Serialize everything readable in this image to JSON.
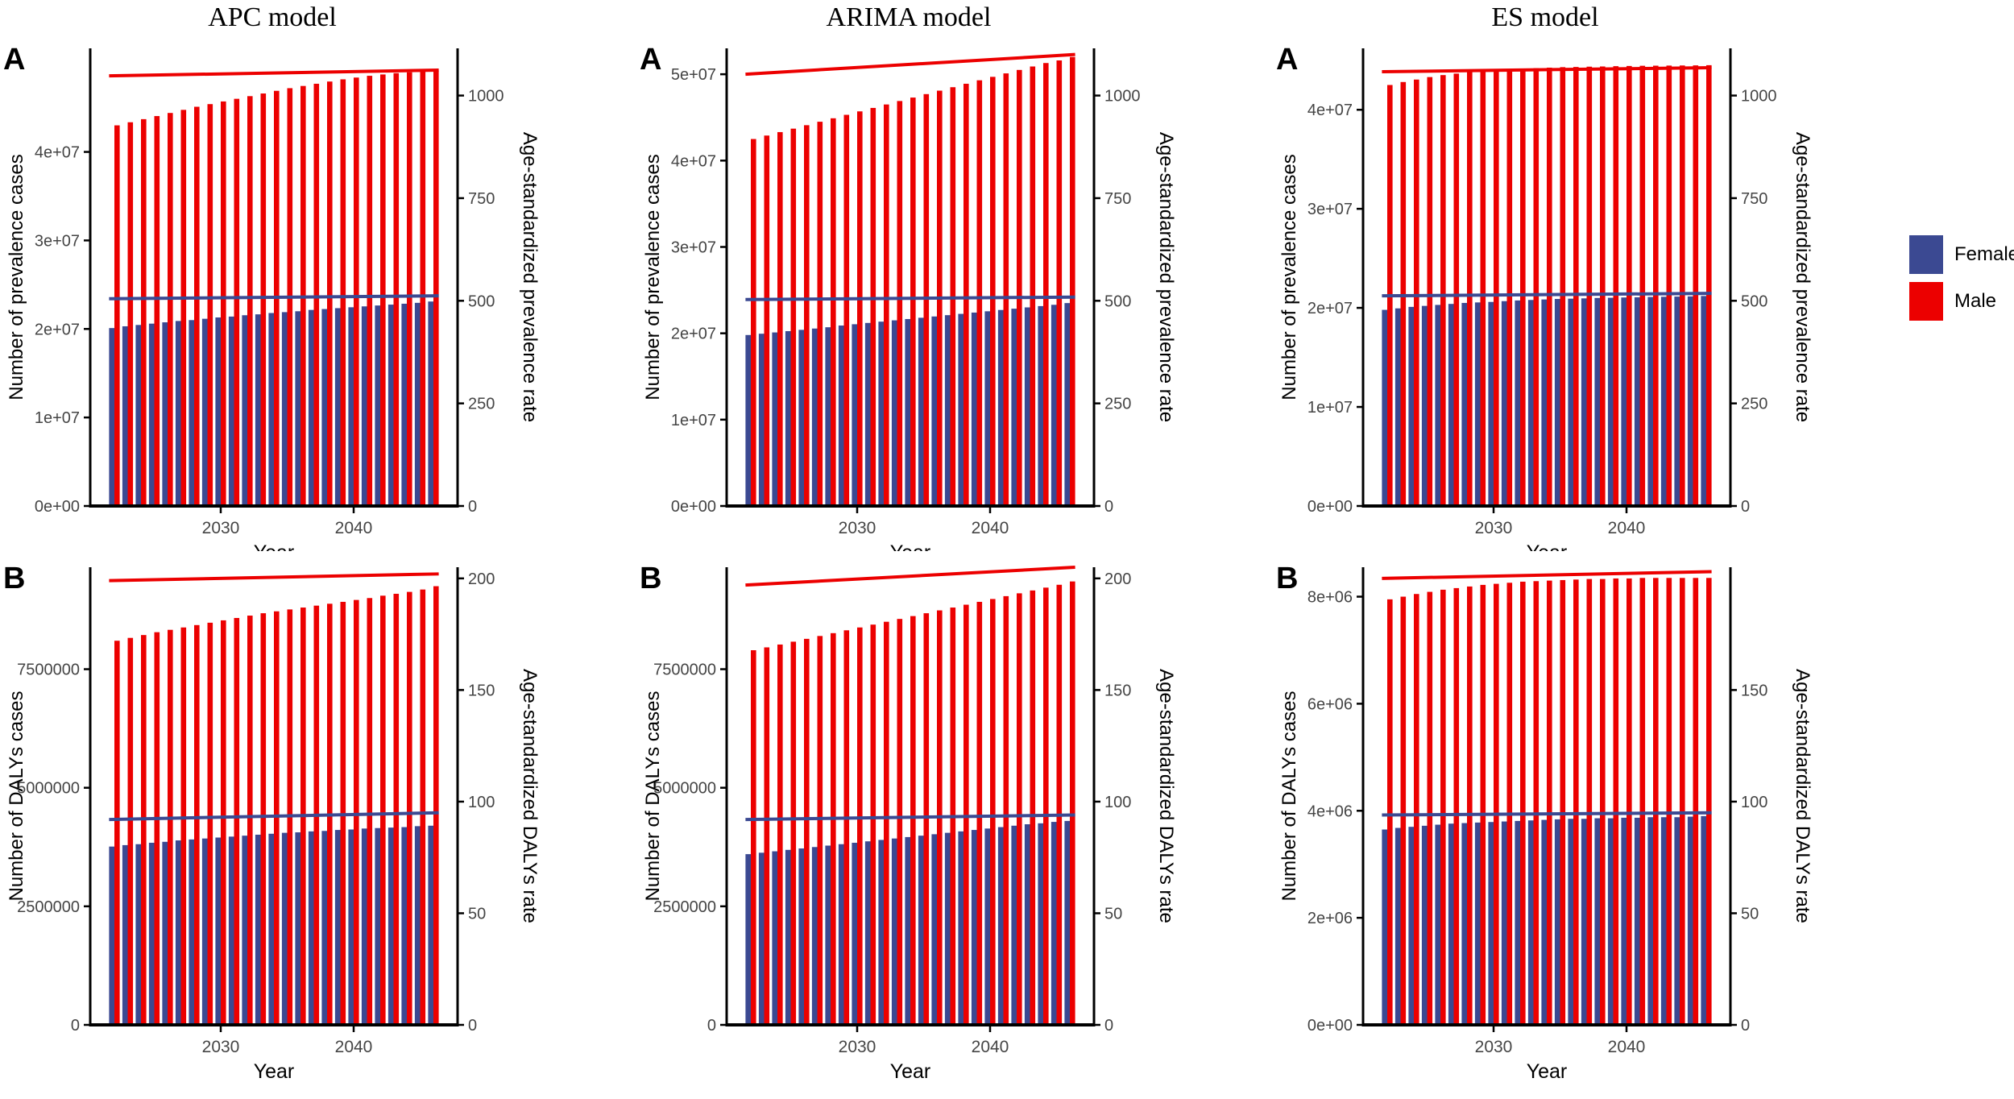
{
  "figure": {
    "column_titles": [
      "APC model",
      "ARIMA model",
      "ES model"
    ]
  },
  "legend": {
    "items": [
      {
        "label": "Female",
        "color": "#3B4992"
      },
      {
        "label": "Male",
        "color": "#EC0000"
      }
    ]
  },
  "years": [
    2022,
    2023,
    2024,
    2025,
    2026,
    2027,
    2028,
    2029,
    2030,
    2031,
    2032,
    2033,
    2034,
    2035,
    2036,
    2037,
    2038,
    2039,
    2040,
    2041,
    2042,
    2043,
    2044,
    2045,
    2046
  ],
  "chart_data": [
    {
      "type": "bar",
      "model": "APC model",
      "panel_label": "A",
      "ylabel_left": "Number of prevalence cases",
      "ylabel_right": "Age-standardized prevalence rate",
      "xlabel": "Year",
      "x_ticks": [
        2030,
        2040
      ],
      "left_ticks": [
        {
          "v": 0,
          "label": "0e+00"
        },
        {
          "v": 10000000,
          "label": "1e+07"
        },
        {
          "v": 20000000,
          "label": "2e+07"
        },
        {
          "v": 30000000,
          "label": "3e+07"
        },
        {
          "v": 40000000,
          "label": "4e+07"
        }
      ],
      "left_max": 51700000,
      "right_ticks": [
        {
          "v": 0,
          "label": "0"
        },
        {
          "v": 250,
          "label": "250"
        },
        {
          "v": 500,
          "label": "500"
        },
        {
          "v": 750,
          "label": "750"
        },
        {
          "v": 1000,
          "label": "1000"
        }
      ],
      "right_max": 1115,
      "series": [
        {
          "name": "Female",
          "color": "#3B4992",
          "values": [
            20100000,
            20300000,
            20450000,
            20600000,
            20750000,
            20900000,
            21000000,
            21150000,
            21300000,
            21400000,
            21550000,
            21650000,
            21800000,
            21900000,
            22000000,
            22150000,
            22250000,
            22350000,
            22450000,
            22550000,
            22650000,
            22750000,
            22850000,
            22950000,
            23100000
          ]
        },
        {
          "name": "Male",
          "color": "#EC0000",
          "values": [
            43000000,
            43350000,
            43700000,
            44050000,
            44400000,
            44750000,
            45100000,
            45400000,
            45700000,
            46000000,
            46300000,
            46600000,
            46900000,
            47200000,
            47450000,
            47700000,
            47950000,
            48200000,
            48400000,
            48600000,
            48750000,
            48900000,
            49000000,
            49100000,
            49200000
          ]
        }
      ],
      "lines": [
        {
          "name": "Female age-standardized rate",
          "axis": "right",
          "color": "#3B4992",
          "start": 505,
          "end": 512
        },
        {
          "name": "Male age-standardized rate",
          "axis": "right",
          "color": "#EC0000",
          "start": 1048,
          "end": 1062
        }
      ]
    },
    {
      "type": "bar",
      "model": "APC model",
      "panel_label": "B",
      "ylabel_left": "Number of DALYs cases",
      "ylabel_right": "Age-standardized DALYs rate",
      "xlabel": "Year",
      "x_ticks": [
        2030,
        2040
      ],
      "left_ticks": [
        {
          "v": 0,
          "label": "0"
        },
        {
          "v": 2500000,
          "label": "2500000"
        },
        {
          "v": 5000000,
          "label": "5000000"
        },
        {
          "v": 7500000,
          "label": "7500000"
        }
      ],
      "left_max": 9650000,
      "right_ticks": [
        {
          "v": 0,
          "label": "0"
        },
        {
          "v": 50,
          "label": "50"
        },
        {
          "v": 100,
          "label": "100"
        },
        {
          "v": 150,
          "label": "150"
        },
        {
          "v": 200,
          "label": "200"
        }
      ],
      "right_max": 205,
      "series": [
        {
          "name": "Female",
          "color": "#3B4992",
          "values": [
            3760000,
            3790000,
            3810000,
            3840000,
            3860000,
            3890000,
            3910000,
            3930000,
            3950000,
            3970000,
            3990000,
            4010000,
            4030000,
            4050000,
            4060000,
            4080000,
            4090000,
            4110000,
            4120000,
            4140000,
            4150000,
            4160000,
            4170000,
            4190000,
            4200000
          ]
        },
        {
          "name": "Male",
          "color": "#EC0000",
          "values": [
            8100000,
            8160000,
            8220000,
            8280000,
            8330000,
            8380000,
            8430000,
            8480000,
            8530000,
            8580000,
            8630000,
            8680000,
            8720000,
            8760000,
            8800000,
            8840000,
            8880000,
            8920000,
            8960000,
            9000000,
            9050000,
            9090000,
            9130000,
            9180000,
            9250000
          ]
        }
      ],
      "lines": [
        {
          "name": "Female age-standardized rate",
          "axis": "right",
          "color": "#3B4992",
          "start": 92,
          "end": 95
        },
        {
          "name": "Male age-standardized rate",
          "axis": "right",
          "color": "#EC0000",
          "start": 199,
          "end": 202
        }
      ]
    },
    {
      "type": "bar",
      "model": "ARIMA model",
      "panel_label": "A",
      "ylabel_left": "Number of prevalence cases",
      "ylabel_right": "Age-standardized prevalence rate",
      "xlabel": "Year",
      "x_ticks": [
        2030,
        2040
      ],
      "left_ticks": [
        {
          "v": 0,
          "label": "0e+00"
        },
        {
          "v": 10000000,
          "label": "1e+07"
        },
        {
          "v": 20000000,
          "label": "2e+07"
        },
        {
          "v": 30000000,
          "label": "3e+07"
        },
        {
          "v": 40000000,
          "label": "4e+07"
        },
        {
          "v": 50000000,
          "label": "5e+07"
        }
      ],
      "left_max": 53000000,
      "right_ticks": [
        {
          "v": 0,
          "label": "0"
        },
        {
          "v": 250,
          "label": "250"
        },
        {
          "v": 500,
          "label": "500"
        },
        {
          "v": 750,
          "label": "750"
        },
        {
          "v": 1000,
          "label": "1000"
        }
      ],
      "right_max": 1115,
      "series": [
        {
          "name": "Female",
          "color": "#3B4992",
          "values": [
            19800000,
            19950000,
            20100000,
            20250000,
            20400000,
            20550000,
            20700000,
            20900000,
            21050000,
            21200000,
            21350000,
            21500000,
            21650000,
            21800000,
            21950000,
            22100000,
            22250000,
            22400000,
            22550000,
            22700000,
            22850000,
            23000000,
            23150000,
            23300000,
            23500000
          ]
        },
        {
          "name": "Male",
          "color": "#EC0000",
          "values": [
            42500000,
            42900000,
            43300000,
            43700000,
            44100000,
            44500000,
            44900000,
            45300000,
            45700000,
            46100000,
            46500000,
            46900000,
            47300000,
            47700000,
            48100000,
            48500000,
            48900000,
            49300000,
            49700000,
            50100000,
            50500000,
            50900000,
            51300000,
            51600000,
            52000000
          ]
        }
      ],
      "lines": [
        {
          "name": "Female age-standardized rate",
          "axis": "right",
          "color": "#3B4992",
          "start": 503,
          "end": 509
        },
        {
          "name": "Male age-standardized rate",
          "axis": "right",
          "color": "#EC0000",
          "start": 1052,
          "end": 1100
        }
      ]
    },
    {
      "type": "bar",
      "model": "ARIMA model",
      "panel_label": "B",
      "ylabel_left": "Number of DALYs cases",
      "ylabel_right": "Age-standardized DALYs rate",
      "xlabel": "Year",
      "x_ticks": [
        2030,
        2040
      ],
      "left_ticks": [
        {
          "v": 0,
          "label": "0"
        },
        {
          "v": 2500000,
          "label": "2500000"
        },
        {
          "v": 5000000,
          "label": "5000000"
        },
        {
          "v": 7500000,
          "label": "7500000"
        }
      ],
      "left_max": 9650000,
      "right_ticks": [
        {
          "v": 0,
          "label": "0"
        },
        {
          "v": 50,
          "label": "50"
        },
        {
          "v": 100,
          "label": "100"
        },
        {
          "v": 150,
          "label": "150"
        },
        {
          "v": 200,
          "label": "200"
        }
      ],
      "right_max": 205,
      "series": [
        {
          "name": "Female",
          "color": "#3B4992",
          "values": [
            3600000,
            3630000,
            3660000,
            3690000,
            3720000,
            3750000,
            3780000,
            3810000,
            3840000,
            3870000,
            3900000,
            3930000,
            3960000,
            3990000,
            4020000,
            4050000,
            4080000,
            4110000,
            4140000,
            4170000,
            4200000,
            4230000,
            4250000,
            4280000,
            4300000
          ]
        },
        {
          "name": "Male",
          "color": "#EC0000",
          "values": [
            7900000,
            7960000,
            8020000,
            8080000,
            8140000,
            8200000,
            8260000,
            8320000,
            8380000,
            8440000,
            8500000,
            8560000,
            8620000,
            8680000,
            8740000,
            8800000,
            8860000,
            8920000,
            8980000,
            9040000,
            9100000,
            9160000,
            9220000,
            9280000,
            9350000
          ]
        }
      ],
      "lines": [
        {
          "name": "Female age-standardized rate",
          "axis": "right",
          "color": "#3B4992",
          "start": 92,
          "end": 94
        },
        {
          "name": "Male age-standardized rate",
          "axis": "right",
          "color": "#EC0000",
          "start": 197,
          "end": 205
        }
      ]
    },
    {
      "type": "bar",
      "model": "ES model",
      "panel_label": "A",
      "ylabel_left": "Number of prevalence cases",
      "ylabel_right": "Age-standardized prevalence rate",
      "xlabel": "Year",
      "x_ticks": [
        2030,
        2040
      ],
      "left_ticks": [
        {
          "v": 0,
          "label": "0e+00"
        },
        {
          "v": 10000000,
          "label": "1e+07"
        },
        {
          "v": 20000000,
          "label": "2e+07"
        },
        {
          "v": 30000000,
          "label": "3e+07"
        },
        {
          "v": 40000000,
          "label": "4e+07"
        }
      ],
      "left_max": 46200000,
      "right_ticks": [
        {
          "v": 0,
          "label": "0"
        },
        {
          "v": 250,
          "label": "250"
        },
        {
          "v": 500,
          "label": "500"
        },
        {
          "v": 750,
          "label": "750"
        },
        {
          "v": 1000,
          "label": "1000"
        }
      ],
      "right_max": 1115,
      "series": [
        {
          "name": "Female",
          "color": "#3B4992",
          "values": [
            19800000,
            19950000,
            20100000,
            20200000,
            20300000,
            20400000,
            20500000,
            20550000,
            20600000,
            20680000,
            20750000,
            20800000,
            20850000,
            20900000,
            20930000,
            20960000,
            21000000,
            21020000,
            21050000,
            21070000,
            21100000,
            21120000,
            21140000,
            21160000,
            21200000
          ]
        },
        {
          "name": "Male",
          "color": "#EC0000",
          "values": [
            42500000,
            42800000,
            43050000,
            43300000,
            43500000,
            43650000,
            43800000,
            43900000,
            44000000,
            44100000,
            44150000,
            44200000,
            44250000,
            44300000,
            44320000,
            44350000,
            44370000,
            44400000,
            44420000,
            44440000,
            44450000,
            44460000,
            44470000,
            44480000,
            44500000
          ]
        }
      ],
      "lines": [
        {
          "name": "Female age-standardized rate",
          "axis": "right",
          "color": "#3B4992",
          "start": 512,
          "end": 518
        },
        {
          "name": "Male age-standardized rate",
          "axis": "right",
          "color": "#EC0000",
          "start": 1058,
          "end": 1068
        }
      ]
    },
    {
      "type": "bar",
      "model": "ES model",
      "panel_label": "B",
      "ylabel_left": "Number of DALYs cases",
      "ylabel_right": "Age-standardized DALYs rate",
      "xlabel": "Year",
      "x_ticks": [
        2030,
        2040
      ],
      "left_ticks": [
        {
          "v": 0,
          "label": "0e+00"
        },
        {
          "v": 2000000,
          "label": "2e+06"
        },
        {
          "v": 4000000,
          "label": "4e+06"
        },
        {
          "v": 6000000,
          "label": "6e+06"
        },
        {
          "v": 8000000,
          "label": "8e+06"
        }
      ],
      "left_max": 8550000,
      "right_ticks": [
        {
          "v": 0,
          "label": "0"
        },
        {
          "v": 50,
          "label": "50"
        },
        {
          "v": 100,
          "label": "100"
        },
        {
          "v": 150,
          "label": "150"
        }
      ],
      "right_max": 205,
      "series": [
        {
          "name": "Female",
          "color": "#3B4992",
          "values": [
            3650000,
            3680000,
            3700000,
            3720000,
            3740000,
            3760000,
            3770000,
            3780000,
            3790000,
            3800000,
            3810000,
            3820000,
            3830000,
            3840000,
            3850000,
            3850000,
            3860000,
            3860000,
            3870000,
            3870000,
            3880000,
            3880000,
            3880000,
            3890000,
            3900000
          ]
        },
        {
          "name": "Male",
          "color": "#EC0000",
          "values": [
            7950000,
            8000000,
            8050000,
            8090000,
            8130000,
            8160000,
            8190000,
            8220000,
            8240000,
            8260000,
            8280000,
            8290000,
            8300000,
            8310000,
            8320000,
            8330000,
            8330000,
            8340000,
            8340000,
            8350000,
            8350000,
            8350000,
            8350000,
            8350000,
            8350000
          ]
        }
      ],
      "lines": [
        {
          "name": "Female age-standardized rate",
          "axis": "right",
          "color": "#3B4992",
          "start": 94,
          "end": 95
        },
        {
          "name": "Male age-standardized rate",
          "axis": "right",
          "color": "#EC0000",
          "start": 200,
          "end": 203
        }
      ]
    }
  ]
}
